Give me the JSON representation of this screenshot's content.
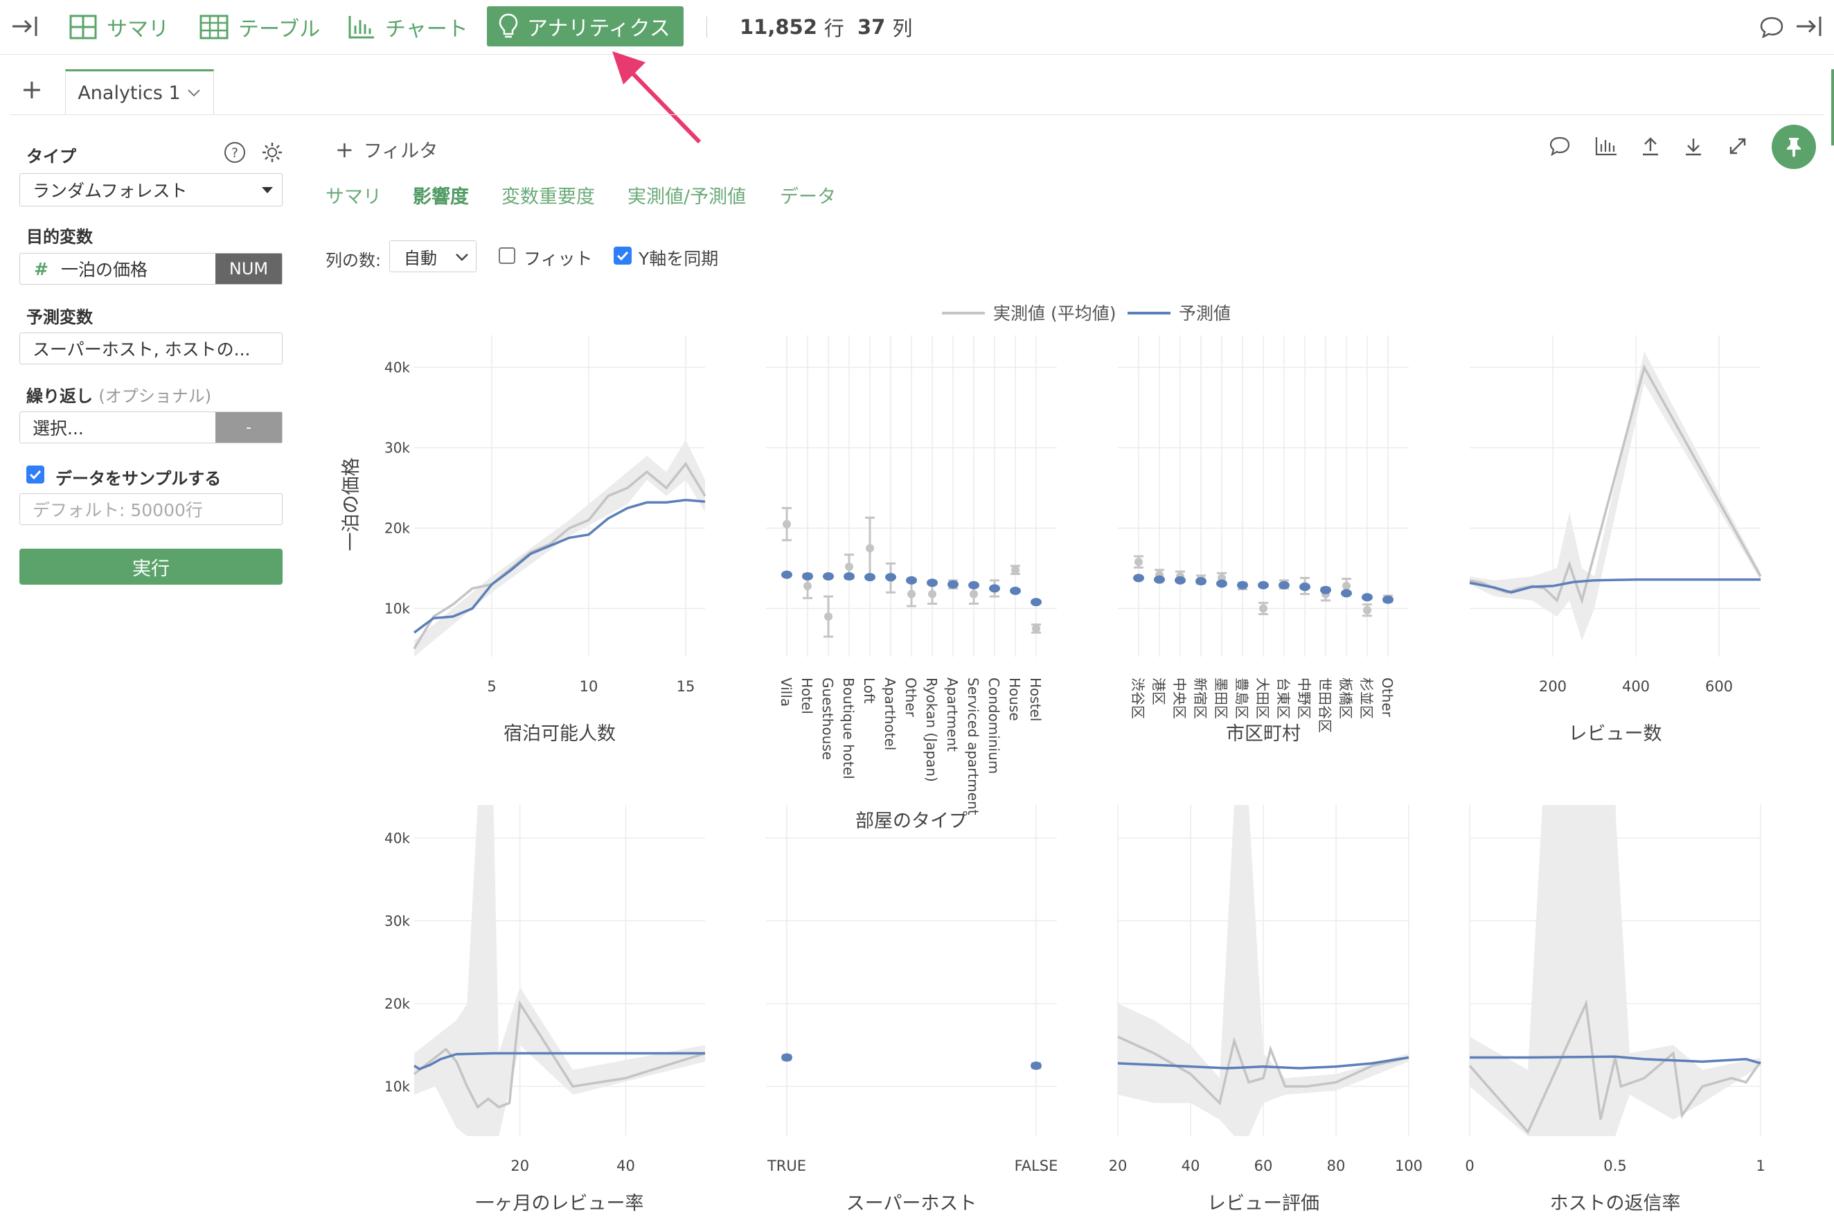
{
  "toolbar": {
    "summary_label": "サマリ",
    "table_label": "テーブル",
    "chart_label": "チャート",
    "analytics_label": "アナリティクス",
    "rows_count": "11,852",
    "rows_unit": "行",
    "cols_count": "37",
    "cols_unit": "列"
  },
  "tabs": {
    "add_label": "+",
    "active_tab": "Analytics 1"
  },
  "sidebar": {
    "type_label": "タイプ",
    "type_value": "ランダムフォレスト",
    "target_label": "目的変数",
    "target_icon": "#",
    "target_value": "一泊の価格",
    "target_type": "NUM",
    "predictors_label": "予測変数",
    "predictors_value": "スーパーホスト, ホストの...",
    "repeat_label": "繰り返し",
    "repeat_optional": "(オプショナル)",
    "repeat_value": "選択...",
    "repeat_button": "-",
    "sample_label": "データをサンプルする",
    "sample_placeholder": "デフォルト: 50000行",
    "run_label": "実行"
  },
  "main": {
    "filter_label": "フィルタ",
    "subtabs": [
      "サマリ",
      "影響度",
      "変数重要度",
      "実測値/予測値",
      "データ"
    ],
    "active_subtab": "影響度",
    "cols_label": "列の数:",
    "cols_value": "自動",
    "fit_label": "フィット",
    "sync_label": "Y軸を同期",
    "accent_color": "#5ba36a"
  },
  "chart_data": {
    "type": "line",
    "legend": {
      "placement": "top-center",
      "actual_label": "実測値 (平均値)",
      "predicted_label": "予測値"
    },
    "ylabel": "一泊の価格",
    "y_ticks": [
      "10k",
      "20k",
      "30k",
      "40k"
    ],
    "ylim": [
      4000,
      44000
    ],
    "colors": {
      "actual": "#c4c4c4",
      "predicted": "#5b7fb8",
      "band": "#ececec"
    },
    "panels": [
      {
        "title": "宿泊可能人数",
        "kind": "numeric",
        "xlim": [
          1,
          16
        ],
        "x_ticks": [
          {
            "v": 5,
            "label": "5"
          },
          {
            "v": 10,
            "label": "10"
          },
          {
            "v": 15,
            "label": "15"
          }
        ],
        "actual": [
          [
            1,
            5000
          ],
          [
            2,
            9000
          ],
          [
            3,
            10500
          ],
          [
            4,
            12500
          ],
          [
            5,
            13000
          ],
          [
            6,
            15000
          ],
          [
            7,
            17000
          ],
          [
            8,
            18000
          ],
          [
            9,
            20000
          ],
          [
            10,
            21000
          ],
          [
            11,
            24000
          ],
          [
            12,
            25000
          ],
          [
            13,
            27000
          ],
          [
            14,
            25000
          ],
          [
            15,
            28000
          ],
          [
            16,
            24000
          ]
        ],
        "band": [
          [
            1,
            4000,
            6000
          ],
          [
            5,
            12000,
            14000
          ],
          [
            9,
            19000,
            21000
          ],
          [
            12,
            23000,
            27000
          ],
          [
            13,
            26000,
            29000
          ],
          [
            14,
            24000,
            27000
          ],
          [
            15,
            26000,
            31000
          ],
          [
            16,
            22000,
            26000
          ]
        ],
        "predicted": [
          [
            1,
            7000
          ],
          [
            2,
            8800
          ],
          [
            3,
            9000
          ],
          [
            4,
            10000
          ],
          [
            5,
            13000
          ],
          [
            6,
            14800
          ],
          [
            7,
            16800
          ],
          [
            8,
            17800
          ],
          [
            9,
            18800
          ],
          [
            10,
            19200
          ],
          [
            11,
            21200
          ],
          [
            12,
            22500
          ],
          [
            13,
            23200
          ],
          [
            14,
            23200
          ],
          [
            15,
            23500
          ],
          [
            16,
            23300
          ]
        ]
      },
      {
        "title": "部屋のタイプ",
        "kind": "categorical",
        "categories": [
          "Villa",
          "Hotel",
          "Guesthouse",
          "Boutique hotel",
          "Loft",
          "Aparthotel",
          "Other",
          "Ryokan (Japan)",
          "Apartment",
          "Serviced apartment",
          "Condominium",
          "House",
          "Hostel"
        ],
        "actual": [
          20500,
          12800,
          9000,
          15200,
          17500,
          13800,
          11800,
          11800,
          13000,
          11800,
          12500,
          14800,
          7500
        ],
        "actual_err": [
          2000,
          1500,
          2500,
          1500,
          3800,
          1800,
          1500,
          1200,
          500,
          1200,
          1000,
          500,
          500
        ],
        "predicted": [
          14200,
          14000,
          14000,
          14000,
          13900,
          13900,
          13500,
          13200,
          13000,
          12900,
          12500,
          12200,
          10800
        ]
      },
      {
        "title": "市区町村",
        "kind": "categorical",
        "categories": [
          "渋谷区",
          "港区",
          "中央区",
          "新宿区",
          "墨田区",
          "豊島区",
          "大田区",
          "台東区",
          "中野区",
          "世田谷区",
          "板橋区",
          "杉並区",
          "Other"
        ],
        "actual": [
          15800,
          14200,
          14000,
          13600,
          13800,
          12800,
          10000,
          13000,
          12800,
          11800,
          12800,
          9800,
          11200
        ],
        "actual_err": [
          700,
          600,
          600,
          500,
          600,
          400,
          700,
          500,
          1000,
          800,
          900,
          700,
          400
        ],
        "predicted": [
          13800,
          13600,
          13500,
          13400,
          13100,
          12900,
          12900,
          12900,
          12700,
          12300,
          11900,
          11400,
          11100
        ]
      },
      {
        "title": "レビュー数",
        "kind": "numeric",
        "xlim": [
          0,
          700
        ],
        "x_ticks": [
          {
            "v": 200,
            "label": "200"
          },
          {
            "v": 400,
            "label": "400"
          },
          {
            "v": 600,
            "label": "600"
          }
        ],
        "actual": [
          [
            0,
            13500
          ],
          [
            30,
            13200
          ],
          [
            60,
            12500
          ],
          [
            90,
            12000
          ],
          [
            120,
            12500
          ],
          [
            150,
            12800
          ],
          [
            180,
            12500
          ],
          [
            210,
            11000
          ],
          [
            240,
            15500
          ],
          [
            270,
            11000
          ],
          [
            420,
            40000
          ],
          [
            700,
            14000
          ]
        ],
        "band": [
          [
            0,
            13000,
            14000
          ],
          [
            60,
            11500,
            13500
          ],
          [
            150,
            11000,
            14000
          ],
          [
            210,
            9000,
            15000
          ],
          [
            240,
            11000,
            22000
          ],
          [
            270,
            6000,
            15000
          ],
          [
            300,
            10000,
            14000
          ],
          [
            420,
            38000,
            42000
          ],
          [
            700,
            13500,
            14500
          ]
        ],
        "predicted": [
          [
            0,
            13200
          ],
          [
            60,
            12600
          ],
          [
            100,
            12000
          ],
          [
            150,
            12700
          ],
          [
            200,
            12800
          ],
          [
            250,
            13300
          ],
          [
            300,
            13500
          ],
          [
            400,
            13600
          ],
          [
            500,
            13600
          ],
          [
            700,
            13600
          ]
        ]
      },
      {
        "title": "一ヶ月のレビュー率",
        "kind": "numeric",
        "xlim": [
          0,
          55
        ],
        "x_ticks": [
          {
            "v": 20,
            "label": "20"
          },
          {
            "v": 40,
            "label": "40"
          }
        ],
        "actual": [
          [
            0,
            11500
          ],
          [
            2,
            12500
          ],
          [
            4,
            13500
          ],
          [
            6,
            14500
          ],
          [
            8,
            13000
          ],
          [
            10,
            10000
          ],
          [
            12,
            7500
          ],
          [
            14,
            8500
          ],
          [
            16,
            7500
          ],
          [
            18,
            8000
          ],
          [
            20,
            20000
          ],
          [
            25,
            15000
          ],
          [
            30,
            10000
          ],
          [
            40,
            11000
          ],
          [
            55,
            14000
          ]
        ],
        "band": [
          [
            0,
            9000,
            14000
          ],
          [
            4,
            10000,
            16000
          ],
          [
            8,
            5000,
            18000
          ],
          [
            10,
            3000,
            20000
          ],
          [
            12,
            4000,
            44000
          ],
          [
            15,
            4000,
            44000
          ],
          [
            16,
            4000,
            14000
          ],
          [
            20,
            15000,
            22000
          ],
          [
            30,
            9000,
            12000
          ],
          [
            55,
            13000,
            15000
          ]
        ],
        "predicted": [
          [
            0,
            12500
          ],
          [
            1,
            12100
          ],
          [
            3,
            12600
          ],
          [
            5,
            13300
          ],
          [
            8,
            13900
          ],
          [
            15,
            14000
          ],
          [
            25,
            14000
          ],
          [
            40,
            14000
          ],
          [
            55,
            14000
          ]
        ]
      },
      {
        "title": "スーパーホスト",
        "kind": "categorical",
        "categories": [
          "TRUE",
          "FALSE"
        ],
        "actual": [
          13500,
          12500
        ],
        "actual_err": [
          300,
          300
        ],
        "predicted": [
          13500,
          12500
        ]
      },
      {
        "title": "レビュー評価",
        "kind": "numeric",
        "xlim": [
          20,
          100
        ],
        "x_ticks": [
          {
            "v": 20,
            "label": "20"
          },
          {
            "v": 40,
            "label": "40"
          },
          {
            "v": 60,
            "label": "60"
          },
          {
            "v": 80,
            "label": "80"
          },
          {
            "v": 100,
            "label": "100"
          }
        ],
        "actual": [
          [
            20,
            16000
          ],
          [
            30,
            14000
          ],
          [
            40,
            11500
          ],
          [
            48,
            8000
          ],
          [
            52,
            15500
          ],
          [
            56,
            10500
          ],
          [
            60,
            11000
          ],
          [
            62,
            14500
          ],
          [
            66,
            10000
          ],
          [
            72,
            10000
          ],
          [
            80,
            10500
          ],
          [
            90,
            12500
          ],
          [
            100,
            13500
          ]
        ],
        "band": [
          [
            20,
            9000,
            20000
          ],
          [
            30,
            8000,
            18000
          ],
          [
            40,
            8000,
            15000
          ],
          [
            48,
            6000,
            11000
          ],
          [
            52,
            4000,
            44000
          ],
          [
            56,
            4000,
            44000
          ],
          [
            60,
            8000,
            14000
          ],
          [
            66,
            9000,
            11000
          ],
          [
            80,
            9500,
            11500
          ],
          [
            100,
            13000,
            14000
          ]
        ],
        "predicted": [
          [
            20,
            12800
          ],
          [
            35,
            12500
          ],
          [
            50,
            12200
          ],
          [
            60,
            12400
          ],
          [
            70,
            12200
          ],
          [
            80,
            12400
          ],
          [
            90,
            12800
          ],
          [
            100,
            13500
          ]
        ]
      },
      {
        "title": "ホストの返信率",
        "kind": "numeric",
        "xlim": [
          0,
          1
        ],
        "x_ticks": [
          {
            "v": 0,
            "label": "0"
          },
          {
            "v": 0.5,
            "label": "0.5"
          },
          {
            "v": 1,
            "label": "1"
          }
        ],
        "actual": [
          [
            0,
            12500
          ],
          [
            0.2,
            4500
          ],
          [
            0.4,
            20000
          ],
          [
            0.45,
            6000
          ],
          [
            0.5,
            13500
          ],
          [
            0.52,
            10000
          ],
          [
            0.6,
            11000
          ],
          [
            0.7,
            14000
          ],
          [
            0.73,
            6500
          ],
          [
            0.8,
            10000
          ],
          [
            0.9,
            11000
          ],
          [
            0.95,
            10500
          ],
          [
            1,
            13000
          ]
        ],
        "band": [
          [
            0,
            10000,
            16000
          ],
          [
            0.2,
            4000,
            12000
          ],
          [
            0.25,
            4000,
            44000
          ],
          [
            0.5,
            4000,
            44000
          ],
          [
            0.55,
            9000,
            14000
          ],
          [
            0.7,
            6000,
            15000
          ],
          [
            0.8,
            8000,
            12000
          ],
          [
            1,
            12500,
            13500
          ]
        ],
        "predicted": [
          [
            0,
            13500
          ],
          [
            0.2,
            13500
          ],
          [
            0.5,
            13600
          ],
          [
            0.6,
            13300
          ],
          [
            0.8,
            13000
          ],
          [
            0.95,
            13300
          ],
          [
            1,
            12800
          ]
        ]
      }
    ]
  }
}
